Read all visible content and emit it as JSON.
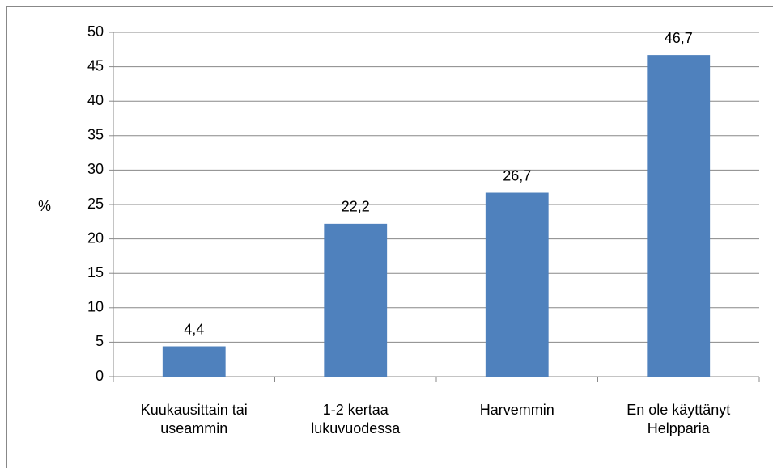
{
  "chart_data": {
    "type": "bar",
    "ylabel": "%",
    "categories": [
      "Kuukausittain tai useammin",
      "1-2 kertaa lukuvuodessa",
      "Harvemmin",
      "En ole käyttänyt Helpparia"
    ],
    "values": [
      4.4,
      22.2,
      26.7,
      46.7
    ],
    "value_labels": [
      "4,4",
      "22,2",
      "26,7",
      "46,7"
    ],
    "color": "#4f81bd",
    "ylim": [
      0,
      50
    ],
    "yticks": [
      0,
      5,
      10,
      15,
      20,
      25,
      30,
      35,
      40,
      45,
      50
    ],
    "grid": true
  }
}
